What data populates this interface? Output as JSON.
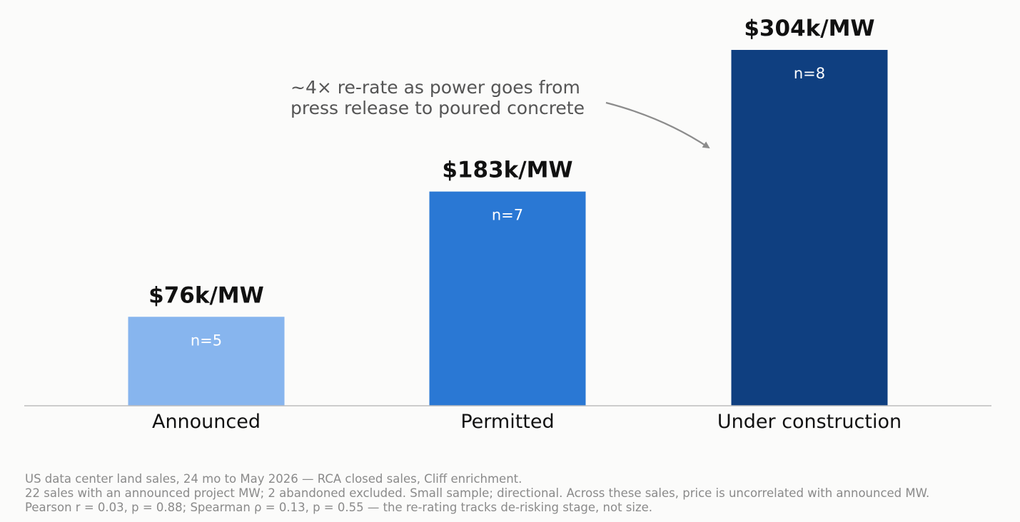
{
  "chart_data": {
    "type": "bar",
    "categories": [
      "Announced",
      "Permitted",
      "Under construction"
    ],
    "values": [
      76,
      183,
      304
    ],
    "value_labels": [
      "$76k/MW",
      "$183k/MW",
      "$304k/MW"
    ],
    "sample_labels": [
      "n=5",
      "n=7",
      "n=8"
    ],
    "colors": [
      "#87b5ee",
      "#2a78d4",
      "#0f3f80"
    ],
    "ylim": [
      0,
      304
    ],
    "grid": false,
    "annotation": {
      "lines": [
        "~4× re-rate as power goes from",
        "press release to poured concrete"
      ],
      "arrow_color": "#8c8c8c"
    }
  },
  "footnote": {
    "lines": [
      "US data center land sales, 24 mo to May 2026 — RCA closed sales, Cliff enrichment.",
      "22 sales with an announced project MW; 2 abandoned excluded. Small sample; directional. Across these sales, price is uncorrelated with announced MW.",
      "Pearson r = 0.03, p = 0.88; Spearman ρ = 0.13, p = 0.55 — the re-rating tracks de-risking stage, not size."
    ]
  }
}
